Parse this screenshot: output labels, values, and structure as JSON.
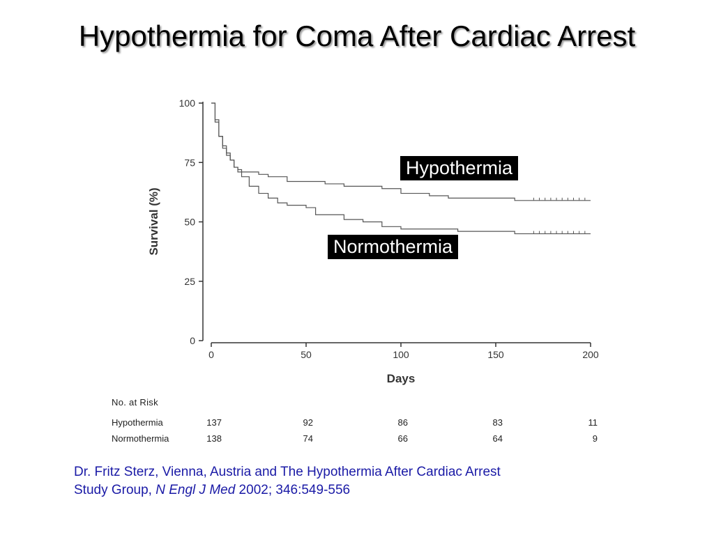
{
  "title": "Hypothermia for Coma After Cardiac Arrest",
  "chart_data": {
    "type": "line",
    "title": "",
    "xlabel": "Days",
    "ylabel": "Survival (%)",
    "xlim": [
      0,
      200
    ],
    "ylim": [
      0,
      100
    ],
    "xticks": [
      "0",
      "50",
      "100",
      "150",
      "200"
    ],
    "yticks": [
      "0",
      "25",
      "50",
      "75",
      "100"
    ],
    "grid": false,
    "series": [
      {
        "name": "Hypothermia",
        "x": [
          0,
          2,
          4,
          6,
          8,
          10,
          12,
          14,
          16,
          20,
          25,
          30,
          40,
          50,
          60,
          70,
          80,
          90,
          95,
          100,
          110,
          115,
          120,
          125,
          130,
          140,
          150,
          160,
          170,
          180,
          190,
          200
        ],
        "y": [
          100,
          92,
          86,
          82,
          79,
          76,
          73,
          72,
          71,
          71,
          70,
          69,
          67,
          67,
          66,
          65,
          65,
          64,
          64,
          62,
          62,
          61,
          61,
          60,
          60,
          60,
          60,
          59,
          59,
          59,
          59,
          59
        ]
      },
      {
        "name": "Normothermia",
        "x": [
          0,
          2,
          4,
          6,
          8,
          10,
          12,
          14,
          16,
          20,
          25,
          30,
          35,
          40,
          45,
          50,
          55,
          60,
          70,
          80,
          90,
          100,
          110,
          120,
          130,
          140,
          150,
          160,
          170,
          180,
          190,
          200
        ],
        "y": [
          100,
          93,
          86,
          81,
          78,
          76,
          73,
          71,
          69,
          65,
          62,
          60,
          58,
          57,
          57,
          56,
          53,
          53,
          51,
          50,
          48,
          47,
          47,
          47,
          46,
          46,
          46,
          45,
          45,
          45,
          45,
          45
        ]
      }
    ],
    "legend_labels": [
      "Hypothermia",
      "Normothermia"
    ],
    "risk_table": {
      "heading": "No. at Risk",
      "days": [
        0,
        50,
        100,
        150,
        200
      ],
      "rows": [
        {
          "label": "Hypothermia",
          "values": [
            "137",
            "92",
            "86",
            "83",
            "11"
          ]
        },
        {
          "label": "Normothermia",
          "values": [
            "138",
            "74",
            "66",
            "64",
            "9"
          ]
        }
      ]
    }
  },
  "citation": {
    "line1": "Dr. Fritz Sterz, Vienna, Austria and The Hypothermia After Cardiac Arrest",
    "line2_prefix": "Study Group, ",
    "journal": "N Engl J Med",
    "line2_suffix": " 2002; 346:549-556"
  },
  "colors": {
    "curve": "#555555",
    "axis": "#333333",
    "citation": "#1a1aa6",
    "legend_bg": "#000000"
  }
}
